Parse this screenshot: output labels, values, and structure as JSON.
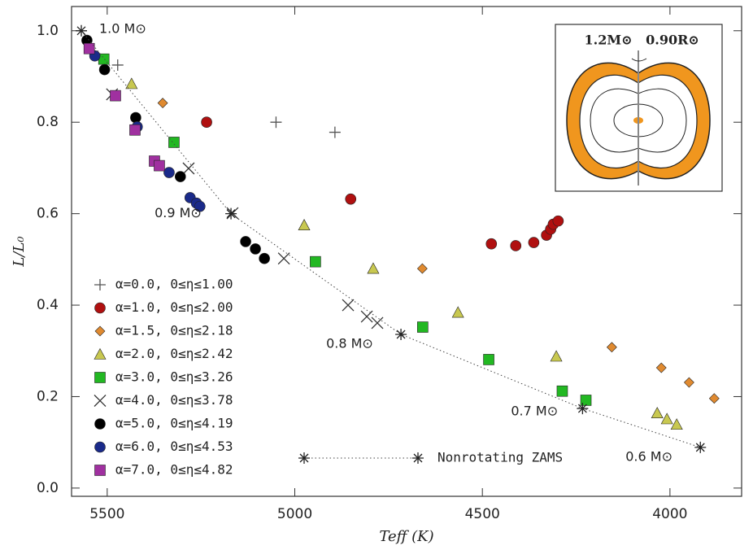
{
  "chart_data": {
    "type": "scatter",
    "xlabel": "Teff (K)",
    "ylabel": "L/L₀",
    "xlim": [
      5595,
      3809
    ],
    "ylim": [
      -0.018,
      1.053
    ],
    "xticks": [
      5500,
      5000,
      4500,
      4000
    ],
    "yticks": [
      {
        "value": 0,
        "label": "0.0"
      },
      0.2,
      0.4,
      0.6,
      0.8,
      {
        "value": 1,
        "label": "1.0"
      }
    ],
    "series": [
      {
        "name": "α=0.0, 0≤η≤1.00",
        "marker": "plus",
        "color": "#555555",
        "x": [
          5472,
          5050,
          4893
        ],
        "values": [
          0.925,
          0.8,
          0.778
        ]
      },
      {
        "name": "α=1.0, 0≤η≤2.00",
        "marker": "circle",
        "color": "#b01010",
        "x": [
          5235,
          4851,
          4476,
          4411,
          4363,
          4329,
          4318,
          4311,
          4298
        ],
        "values": [
          0.8,
          0.632,
          0.534,
          0.53,
          0.537,
          0.553,
          0.566,
          0.577,
          0.584
        ]
      },
      {
        "name": "α=1.5, 0≤η≤2.18",
        "marker": "diamond",
        "color": "#e08a30",
        "x": [
          5352,
          4660,
          4155,
          4023,
          3949,
          3882
        ],
        "values": [
          0.842,
          0.48,
          0.308,
          0.263,
          0.231,
          0.196
        ]
      },
      {
        "name": "α=2.0, 0≤η≤2.42",
        "marker": "triangle",
        "color": "#c8c850",
        "x": [
          5435,
          4975,
          4791,
          4565,
          4303,
          4034,
          4008,
          3982
        ],
        "values": [
          0.884,
          0.575,
          0.48,
          0.384,
          0.288,
          0.164,
          0.151,
          0.139
        ]
      },
      {
        "name": "α=3.0, 0≤η≤3.26",
        "marker": "square",
        "color": "#22b822",
        "x": [
          5509,
          5322,
          4945,
          4659,
          4483,
          4287,
          4224
        ],
        "values": [
          0.938,
          0.756,
          0.495,
          0.352,
          0.281,
          0.212,
          0.192
        ]
      },
      {
        "name": "α=4.0, 0≤η≤3.78",
        "marker": "x",
        "color": "#333333",
        "x": [
          5487,
          5283,
          5166,
          5029,
          4858,
          4808,
          4780
        ],
        "values": [
          0.861,
          0.699,
          0.601,
          0.502,
          0.4,
          0.375,
          0.361
        ]
      },
      {
        "name": "α=5.0, 0≤η≤4.19",
        "marker": "circle",
        "color": "#000000",
        "x": [
          5554,
          5507,
          5424,
          5305,
          5131,
          5105,
          5081
        ],
        "values": [
          0.979,
          0.915,
          0.81,
          0.681,
          0.539,
          0.523,
          0.502
        ]
      },
      {
        "name": "α=6.0, 0≤η≤4.53",
        "marker": "circle",
        "color": "#1a2a8a",
        "x": [
          5533,
          5420,
          5335,
          5279,
          5262,
          5253
        ],
        "values": [
          0.945,
          0.79,
          0.69,
          0.635,
          0.623,
          0.616
        ]
      },
      {
        "name": "α=7.0, 0≤η≤4.82",
        "marker": "square",
        "color": "#a030a0",
        "x": [
          5548,
          5478,
          5426,
          5374,
          5361
        ],
        "values": [
          0.961,
          0.858,
          0.783,
          0.715,
          0.705
        ]
      },
      {
        "name": "Nonrotating ZAMS",
        "marker": "asterisk",
        "color": "#222222",
        "x": [
          5569,
          5170,
          4717,
          4233,
          3919
        ],
        "values": [
          1.0,
          0.6,
          0.336,
          0.174,
          0.089
        ],
        "point_labels": [
          "1.0 M⊙",
          "0.9 M⊙",
          "0.8 M⊙",
          "0.7 M⊙",
          "0.6 M⊙"
        ]
      }
    ]
  },
  "inset": {
    "mass": "1.2M⊙",
    "radius": "0.90R⊙"
  }
}
